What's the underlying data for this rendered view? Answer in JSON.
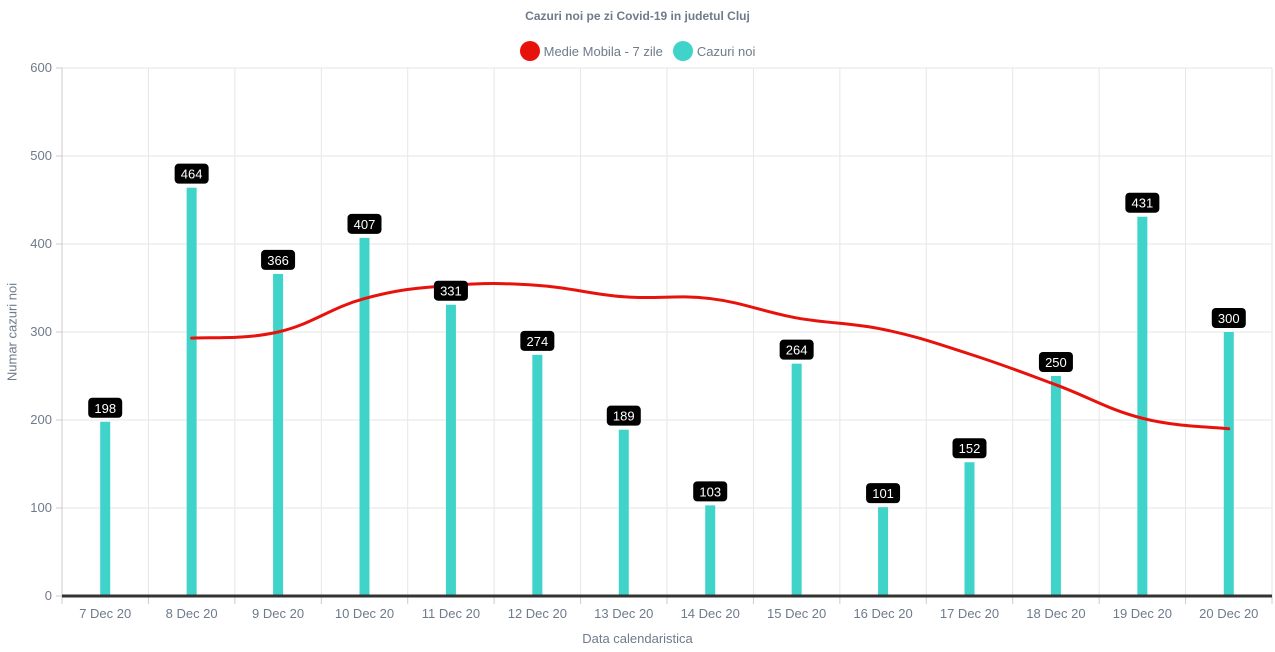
{
  "chart_data": {
    "type": "bar",
    "title": "Cazuri noi pe zi Covid-19 in judetul Cluj",
    "xlabel": "Data calendaristica",
    "ylabel": "Numar cazuri noi",
    "ylim": [
      0,
      600
    ],
    "yticks": [
      0,
      100,
      200,
      300,
      400,
      500,
      600
    ],
    "grid": true,
    "legend_position": "top",
    "categories": [
      "7 Dec 20",
      "8 Dec 20",
      "9 Dec 20",
      "10 Dec 20",
      "11 Dec 20",
      "12 Dec 20",
      "13 Dec 20",
      "14 Dec 20",
      "15 Dec 20",
      "16 Dec 20",
      "17 Dec 20",
      "18 Dec 20",
      "19 Dec 20",
      "20 Dec 20"
    ],
    "series": [
      {
        "name": "Medie Mobila - 7 zile",
        "type": "line",
        "color": "#e8120c",
        "values": [
          null,
          293,
          300,
          338,
          353,
          353,
          340,
          338,
          316,
          303,
          275,
          240,
          202,
          190
        ]
      },
      {
        "name": "Cazuri noi",
        "type": "bar",
        "color": "#40d3ca",
        "values": [
          198,
          464,
          366,
          407,
          331,
          274,
          189,
          103,
          264,
          101,
          152,
          250,
          431,
          300
        ]
      }
    ]
  }
}
